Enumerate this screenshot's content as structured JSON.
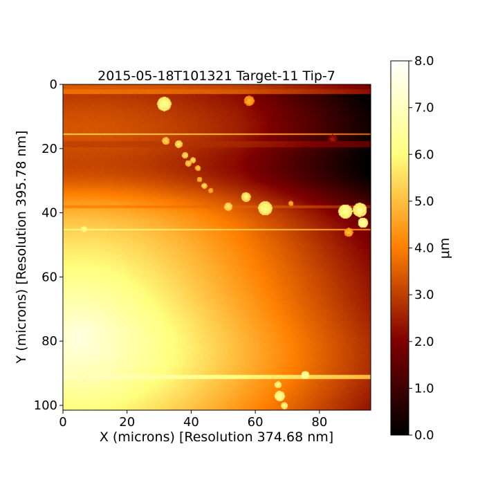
{
  "chart_data": {
    "type": "heatmap",
    "title": "2015-05-18T101321 Target-11 Tip-7",
    "xlabel": "X (microns) [Resolution 374.68 nm]",
    "ylabel": "Y (microns) [Resolution 395.78 nm]",
    "xlim": [
      0,
      96
    ],
    "ylim": [
      101.5,
      0
    ],
    "x_ticks": [
      "0",
      "20",
      "40",
      "60",
      "80"
    ],
    "x_tick_values": [
      0,
      20,
      40,
      60,
      80
    ],
    "y_ticks": [
      "0",
      "20",
      "40",
      "60",
      "80",
      "100"
    ],
    "y_tick_values": [
      0,
      20,
      40,
      60,
      80,
      100
    ],
    "colorbar": {
      "label": "μm",
      "colormap": "afmhot",
      "range": [
        0.0,
        8.0
      ],
      "ticks": [
        "0.0",
        "1.0",
        "2.0",
        "3.0",
        "4.0",
        "5.0",
        "6.0",
        "7.0",
        "8.0"
      ],
      "tick_values": [
        0,
        1,
        2,
        3,
        4,
        5,
        6,
        7,
        8
      ]
    },
    "grid": false,
    "features": {
      "stripes": [
        {
          "y0": 0,
          "y1": 1.5,
          "value": 3.4
        },
        {
          "y0": 1.5,
          "y1": 3,
          "value": 4.0
        },
        {
          "y0": 15.2,
          "y1": 15.6,
          "value": 6.5
        },
        {
          "y0": 17.5,
          "y1": 19.5,
          "value": 2.2
        },
        {
          "y0": 37.5,
          "y1": 38.5,
          "value": 3.0
        },
        {
          "y0": 45,
          "y1": 45.4,
          "value": 6.0
        },
        {
          "y0": 90.5,
          "y1": 91.8,
          "value": 6.6
        }
      ],
      "particles": [
        {
          "x": 31.5,
          "y": 6,
          "r": 2.2,
          "value": 6.4
        },
        {
          "x": 58,
          "y": 5,
          "r": 1.6,
          "value": 4.8
        },
        {
          "x": 32,
          "y": 17.5,
          "r": 1.2,
          "value": 5.5
        },
        {
          "x": 36,
          "y": 18.5,
          "r": 1.2,
          "value": 5.8
        },
        {
          "x": 38,
          "y": 22,
          "r": 1.0,
          "value": 5.6
        },
        {
          "x": 39,
          "y": 24.5,
          "r": 1.0,
          "value": 5.4
        },
        {
          "x": 40.5,
          "y": 23.5,
          "r": 0.9,
          "value": 5.7
        },
        {
          "x": 42,
          "y": 26,
          "r": 0.9,
          "value": 5.3
        },
        {
          "x": 42.5,
          "y": 29.5,
          "r": 0.8,
          "value": 5.2
        },
        {
          "x": 44,
          "y": 31.5,
          "r": 0.9,
          "value": 5.6
        },
        {
          "x": 46,
          "y": 33,
          "r": 0.8,
          "value": 5.1
        },
        {
          "x": 51.5,
          "y": 38,
          "r": 1.3,
          "value": 5.7
        },
        {
          "x": 57,
          "y": 35,
          "r": 1.5,
          "value": 6.0
        },
        {
          "x": 63,
          "y": 38.5,
          "r": 2.2,
          "value": 6.3
        },
        {
          "x": 71,
          "y": 37,
          "r": 0.8,
          "value": 5.0
        },
        {
          "x": 84,
          "y": 17,
          "r": 1.5,
          "value": 2.5
        },
        {
          "x": 88,
          "y": 39.5,
          "r": 2.2,
          "value": 6.4
        },
        {
          "x": 92.5,
          "y": 39,
          "r": 2.2,
          "value": 6.3
        },
        {
          "x": 93.5,
          "y": 43,
          "r": 1.6,
          "value": 6.6
        },
        {
          "x": 89,
          "y": 46,
          "r": 1.4,
          "value": 5.0
        },
        {
          "x": 6.5,
          "y": 45,
          "r": 1.0,
          "value": 6.5
        },
        {
          "x": 6.5,
          "y": 91,
          "r": 1.2,
          "value": 7.3
        },
        {
          "x": 75.5,
          "y": 90.5,
          "r": 1.3,
          "value": 6.8
        },
        {
          "x": 67,
          "y": 93.5,
          "r": 1.1,
          "value": 6.3
        },
        {
          "x": 67.5,
          "y": 97,
          "r": 1.6,
          "value": 6.5
        },
        {
          "x": 69,
          "y": 100,
          "r": 1.1,
          "value": 6.2
        }
      ]
    }
  }
}
